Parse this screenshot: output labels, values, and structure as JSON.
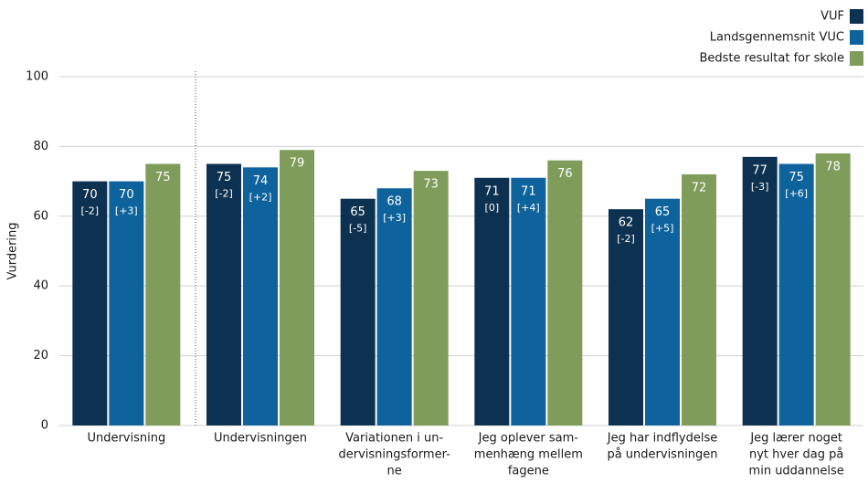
{
  "chart_data": {
    "type": "bar",
    "ylabel": "Vurdering",
    "categories": [
      [
        "Undervisning"
      ],
      [
        "Undervisningen"
      ],
      [
        "Variationen i un-",
        "dervisningsformer-",
        "ne"
      ],
      [
        "Jeg oplever sam-",
        "menhæng mellem",
        "fagene"
      ],
      [
        "Jeg har indflydelse",
        "på undervisningen"
      ],
      [
        "Jeg lærer noget",
        "nyt hver dag på",
        "min uddannelse"
      ]
    ],
    "series": [
      {
        "name": "VUF",
        "color": "#0d3150",
        "values": [
          70,
          75,
          65,
          71,
          62,
          77
        ],
        "changes": [
          "[-2]",
          "[-2]",
          "[-5]",
          "[0]",
          "[-2]",
          "[-3]"
        ]
      },
      {
        "name": "Landsgennemsnit VUC",
        "color": "#0e639c",
        "values": [
          70,
          74,
          68,
          71,
          65,
          75
        ],
        "changes": [
          "[+3]",
          "[+2]",
          "[+3]",
          "[+4]",
          "[+5]",
          "[+6]"
        ]
      },
      {
        "name": "Bedste resultat for skole",
        "color": "#7f9c5a",
        "values": [
          75,
          79,
          73,
          76,
          72,
          78
        ]
      }
    ],
    "ylim": [
      0,
      100
    ],
    "yticks": [
      0,
      20,
      40,
      60,
      80,
      100
    ],
    "grid": true,
    "legend": "top-right"
  }
}
